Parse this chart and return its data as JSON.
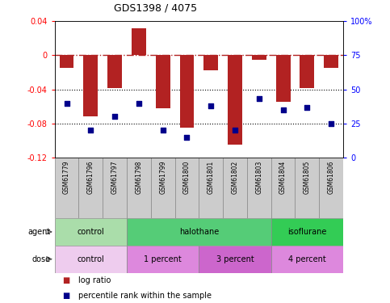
{
  "title": "GDS1398 / 4075",
  "samples": [
    "GSM61779",
    "GSM61796",
    "GSM61797",
    "GSM61798",
    "GSM61799",
    "GSM61800",
    "GSM61801",
    "GSM61802",
    "GSM61803",
    "GSM61804",
    "GSM61805",
    "GSM61806"
  ],
  "log_ratio": [
    -0.015,
    -0.072,
    -0.038,
    0.032,
    -0.062,
    -0.085,
    -0.018,
    -0.105,
    -0.005,
    -0.055,
    -0.038,
    -0.015
  ],
  "percentile_rank": [
    40,
    20,
    30,
    40,
    20,
    15,
    38,
    20,
    43,
    35,
    37,
    25
  ],
  "ylim": [
    -0.12,
    0.04
  ],
  "yticks": [
    0.04,
    0.0,
    -0.04,
    -0.08,
    -0.12
  ],
  "yticklabels": [
    "0.04",
    "0",
    "-0.04",
    "-0.08",
    "-0.12"
  ],
  "right_ytick_pcts": [
    100,
    75,
    50,
    25,
    0
  ],
  "right_yticklabels": [
    "100%",
    "75",
    "50",
    "25",
    "0"
  ],
  "bar_color": "#B22222",
  "dot_color": "#00008B",
  "agent_groups": [
    {
      "label": "control",
      "start": 0,
      "end": 3,
      "color": "#AADDAA"
    },
    {
      "label": "halothane",
      "start": 3,
      "end": 9,
      "color": "#55CC77"
    },
    {
      "label": "isoflurane",
      "start": 9,
      "end": 12,
      "color": "#33CC55"
    }
  ],
  "dose_groups": [
    {
      "label": "control",
      "start": 0,
      "end": 3,
      "color": "#EECCEE"
    },
    {
      "label": "1 percent",
      "start": 3,
      "end": 6,
      "color": "#DD88DD"
    },
    {
      "label": "3 percent",
      "start": 6,
      "end": 9,
      "color": "#CC66CC"
    },
    {
      "label": "4 percent",
      "start": 9,
      "end": 12,
      "color": "#DD88DD"
    }
  ],
  "legend_red": "log ratio",
  "legend_blue": "percentile rank within the sample",
  "agent_label": "agent",
  "dose_label": "dose",
  "sample_box_color": "#CCCCCC",
  "background_color": "#FFFFFF"
}
